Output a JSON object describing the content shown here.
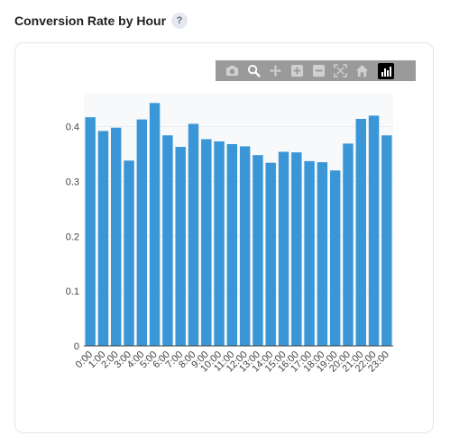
{
  "header": {
    "title": "Conversion Rate by Hour",
    "help_label": "?"
  },
  "modebar": {
    "icons": [
      "camera-icon",
      "zoom-icon",
      "pan-icon",
      "zoom-in-icon",
      "zoom-out-icon",
      "autoscale-icon",
      "reset-axes-icon",
      "plotly-logo-icon"
    ]
  },
  "colors": {
    "bar": "#3a96d6",
    "plot_bg": "#f8f9fb",
    "grid": "#e9ecf0",
    "axis": "#444444"
  },
  "chart_data": {
    "type": "bar",
    "title": "",
    "xlabel": "",
    "ylabel": "",
    "categories": [
      "0:00",
      "1:00",
      "2:00",
      "3:00",
      "4:00",
      "5:00",
      "6:00",
      "7:00",
      "8:00",
      "9:00",
      "10:00",
      "11:00",
      "12:00",
      "13:00",
      "14:00",
      "15:00",
      "16:00",
      "17:00",
      "18:00",
      "19:00",
      "20:00",
      "21:00",
      "22:00",
      "23:00"
    ],
    "values": [
      0.417,
      0.392,
      0.398,
      0.338,
      0.413,
      0.443,
      0.384,
      0.363,
      0.405,
      0.377,
      0.373,
      0.368,
      0.364,
      0.348,
      0.334,
      0.354,
      0.353,
      0.337,
      0.335,
      0.32,
      0.369,
      0.414,
      0.42,
      0.384
    ],
    "ylim": [
      0,
      0.46
    ],
    "yticks": [
      0,
      0.1,
      0.2,
      0.3,
      0.4
    ],
    "ytick_labels": [
      "0",
      "0.1",
      "0.2",
      "0.3",
      "0.4"
    ],
    "grid": true
  }
}
